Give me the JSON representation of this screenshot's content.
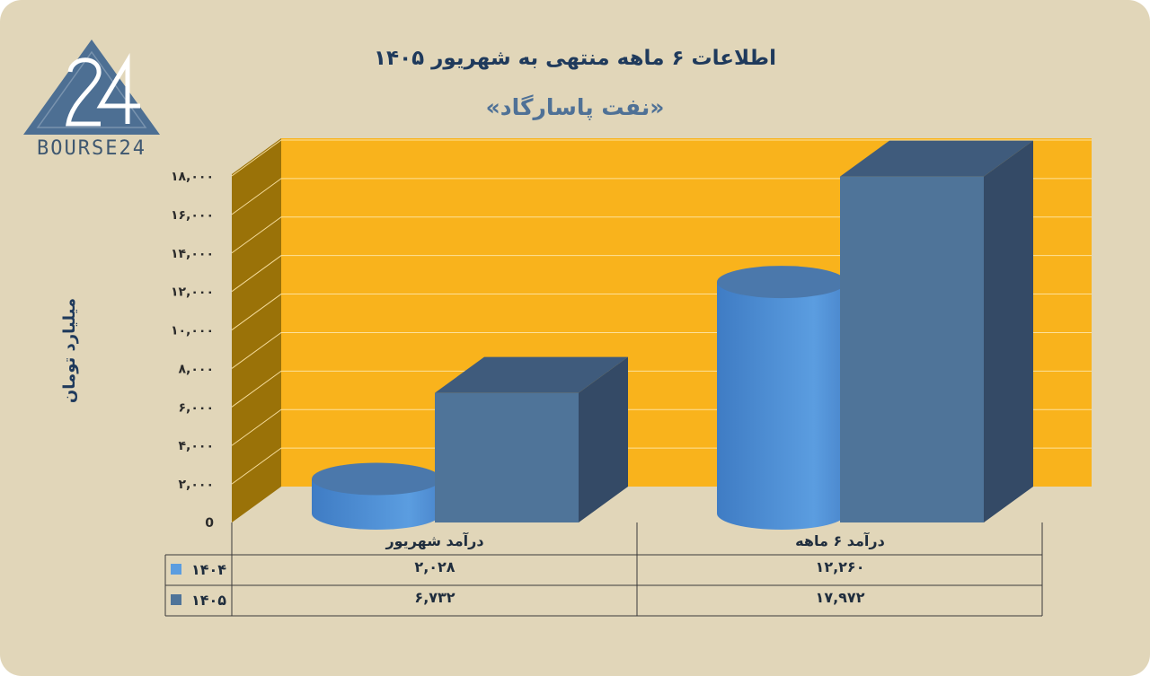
{
  "title": "اطلاعات ۶ ماهه منتهی به شهریور ۱۴۰۵",
  "subtitle": "«نفت پاسارگاد»",
  "logo_text": "BOURSE24",
  "ylabel": "میلیارد تومان",
  "colors": {
    "background": "#e1d6b9",
    "plot_back": "#f9b31c",
    "plot_side": "#9a7208",
    "series_1404": "#5b9de0",
    "series_1405": "#4f7499"
  },
  "chart_data": {
    "type": "bar",
    "categories": [
      "درآمد شهریور",
      "درآمد ۶ ماهه"
    ],
    "series": [
      {
        "name": "۱۴۰۴",
        "values": [
          2028,
          12260
        ],
        "labels": [
          "۲,۰۲۸",
          "۱۲,۲۶۰"
        ],
        "shape": "cylinder"
      },
      {
        "name": "۱۴۰۵",
        "values": [
          6732,
          17972
        ],
        "labels": [
          "۶,۷۳۲",
          "۱۷,۹۷۲"
        ],
        "shape": "box"
      }
    ],
    "ylim": [
      0,
      18000
    ],
    "yticks": [
      0,
      2000,
      4000,
      6000,
      8000,
      10000,
      12000,
      14000,
      16000,
      18000
    ],
    "ytick_labels": [
      "0",
      "۲,۰۰۰",
      "۴,۰۰۰",
      "۶,۰۰۰",
      "۸,۰۰۰",
      "۱۰,۰۰۰",
      "۱۲,۰۰۰",
      "۱۴,۰۰۰",
      "۱۶,۰۰۰",
      "۱۸,۰۰۰"
    ],
    "ylabel": "میلیارد تومان",
    "grid": true,
    "legend": "data-table"
  }
}
